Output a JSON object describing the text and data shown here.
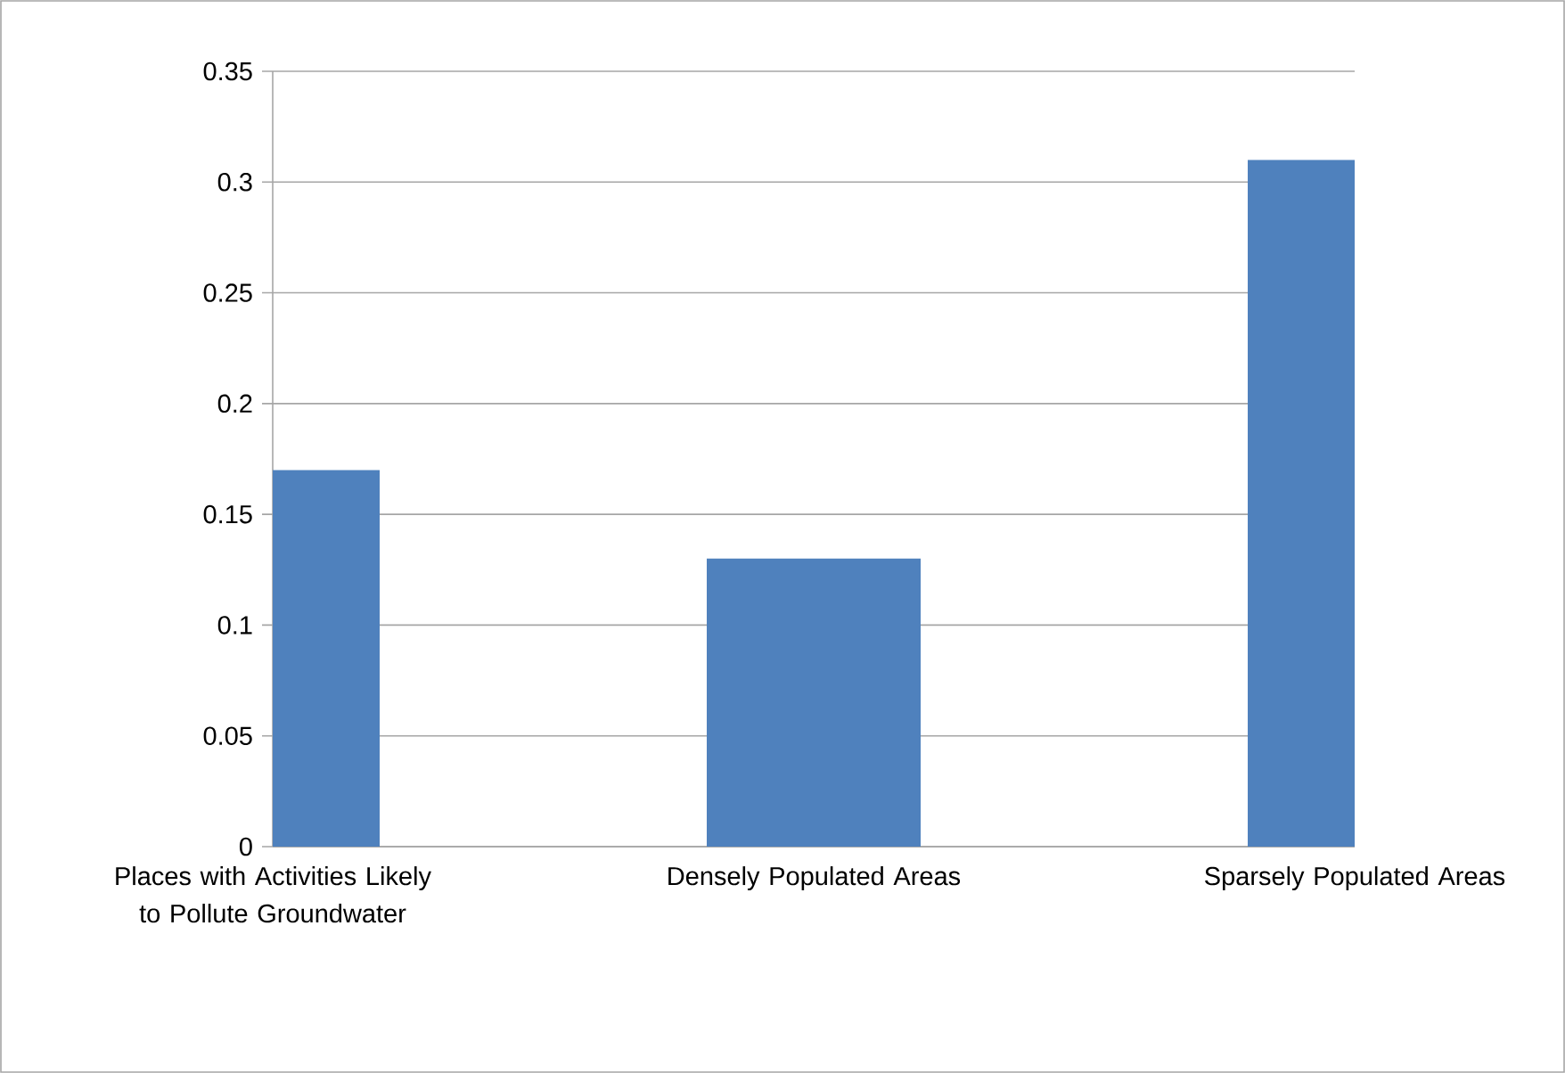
{
  "chart_data": {
    "type": "bar",
    "categories": [
      "Places with Activities Likely to Pollute Groundwater",
      "Densely Populated Areas",
      "Sparsely Populated Areas"
    ],
    "values": [
      0.17,
      0.13,
      0.31
    ],
    "color": "#4f81bd",
    "ylim": [
      0,
      0.35
    ],
    "yticks": [
      0,
      0.05,
      0.1,
      0.15,
      0.2,
      0.25,
      0.3,
      0.35
    ],
    "grid": "y"
  }
}
